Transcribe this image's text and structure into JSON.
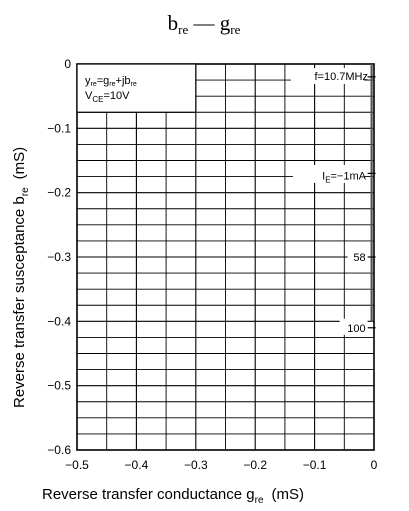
{
  "chart_data": {
    "type": "line",
    "title": {
      "main": "b",
      "main_sub": "re",
      "sep": " — ",
      "second": "g",
      "second_sub": "re"
    },
    "xlabel": {
      "text": "Reverse transfer conductance  g",
      "sub": "re",
      "unit": "(mS)"
    },
    "ylabel": {
      "text": "Reverse transfer susceptance  b",
      "sub": "re",
      "unit": "(mS)"
    },
    "xlim": [
      -0.5,
      0
    ],
    "ylim": [
      -0.6,
      0
    ],
    "grid": true,
    "x_ticks": [
      {
        "value": -0.5,
        "label": "−0.5"
      },
      {
        "value": -0.4,
        "label": "−0.4"
      },
      {
        "value": -0.3,
        "label": "−0.3"
      },
      {
        "value": -0.2,
        "label": "−0.2"
      },
      {
        "value": -0.1,
        "label": "−0.1"
      },
      {
        "value": 0,
        "label": "0"
      }
    ],
    "y_ticks": [
      {
        "value": 0,
        "label": "0"
      },
      {
        "value": -0.1,
        "label": "−0.1"
      },
      {
        "value": -0.2,
        "label": "−0.2"
      },
      {
        "value": -0.3,
        "label": "−0.3"
      },
      {
        "value": -0.4,
        "label": "−0.4"
      },
      {
        "value": -0.5,
        "label": "−0.5"
      },
      {
        "value": -0.6,
        "label": "−0.6"
      }
    ],
    "series": [
      {
        "x": [
          -0.004,
          -0.004,
          -0.004,
          -0.004,
          -0.004
        ],
        "y": [
          0,
          -0.1,
          -0.2,
          -0.3,
          -0.4
        ]
      }
    ],
    "curve_points": [
      {
        "x": -0.004,
        "y": -0.02,
        "label": ""
      },
      {
        "x": -0.004,
        "y": -0.17,
        "label": ""
      },
      {
        "x": -0.004,
        "y": -0.3,
        "label": "58"
      },
      {
        "x": -0.004,
        "y": -0.41,
        "label": "100"
      }
    ],
    "annotations": {
      "formula": {
        "y1": "y",
        "y1_sub": "re",
        "eq": "=g",
        "g_sub": "re",
        "plus": "+jb",
        "b_sub": "re"
      },
      "vce": {
        "pre": "V",
        "sub": "CE",
        "post": "=10V"
      },
      "freq": "f=10.7MHz",
      "ie": {
        "pre": "I",
        "sub": "E",
        "post": "=−1mA"
      }
    }
  }
}
